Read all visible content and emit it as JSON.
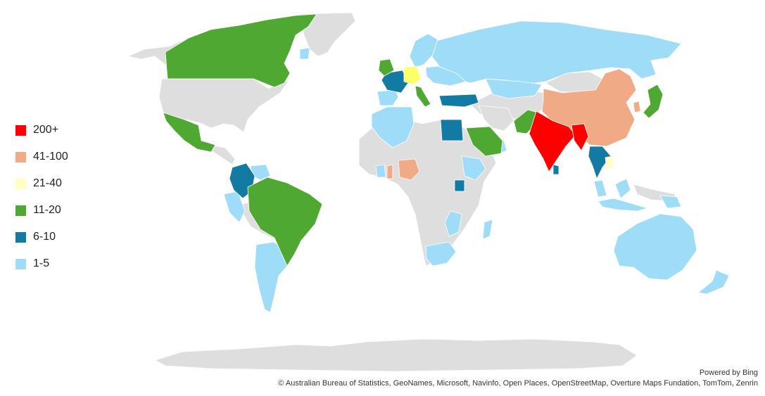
{
  "colors": {
    "base": "#dedede",
    "200+": "#ff0000",
    "41-100": "#f0aa86",
    "21-40": "#ffffc4",
    "21-40_highlight": "#ffff66",
    "11-20": "#4ea832",
    "6-10": "#127aa3",
    "1-5": "#9fdcf7"
  },
  "legend": {
    "items": [
      {
        "label": "200+",
        "color": "#ff0000"
      },
      {
        "label": "41-100",
        "color": "#f0aa86"
      },
      {
        "label": "21-40",
        "color": "#ffffc4"
      },
      {
        "label": "11-20",
        "color": "#4ea832"
      },
      {
        "label": "6-10",
        "color": "#127aa3"
      },
      {
        "label": "1-5",
        "color": "#9fdcf7"
      }
    ]
  },
  "attribution": {
    "powered_by": "Powered by Bing",
    "credits": "© Australian Bureau of Statistics, GeoNames, Microsoft, Navinfo, Open Places, OpenStreetMap, Overture Maps Fundation, TomTom, Zenrin"
  }
}
